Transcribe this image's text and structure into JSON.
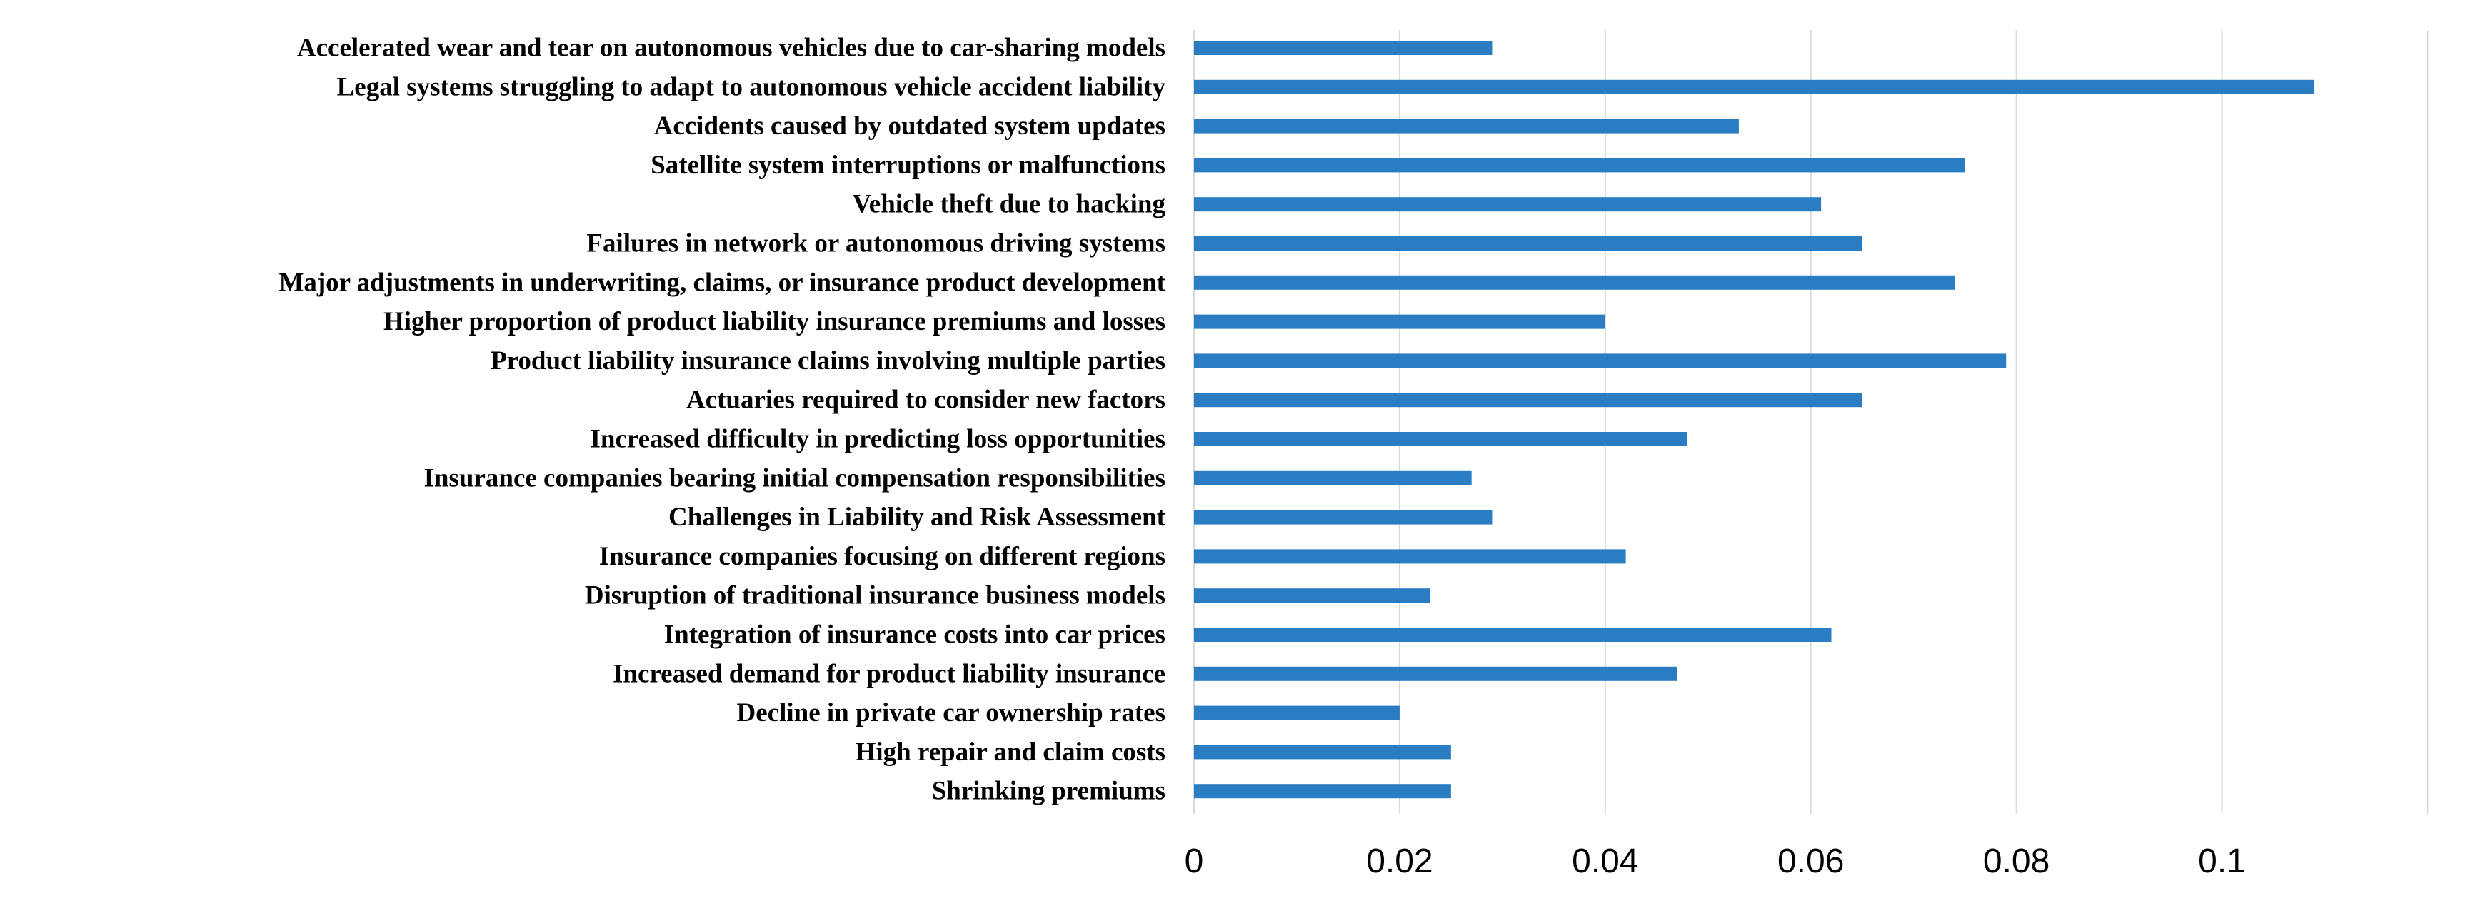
{
  "chart_data": {
    "type": "bar",
    "orientation": "horizontal",
    "title": "",
    "xlabel": "",
    "ylabel": "",
    "xlim": [
      0,
      0.12
    ],
    "x_ticks": [
      {
        "value": 0,
        "label": "0"
      },
      {
        "value": 0.02,
        "label": "0.02"
      },
      {
        "value": 0.04,
        "label": "0.04"
      },
      {
        "value": 0.06,
        "label": "0.06"
      },
      {
        "value": 0.08,
        "label": "0.08"
      },
      {
        "value": 0.1,
        "label": "0.1"
      }
    ],
    "grid": true,
    "legend": "none",
    "bar_color": "#2a7dc3",
    "grid_color": "#d9d9d9",
    "categories": [
      "Accelerated wear and tear on autonomous vehicles due to car-sharing models",
      "Legal systems struggling to adapt to autonomous vehicle accident liability",
      "Accidents caused by outdated system updates",
      "Satellite system interruptions or malfunctions",
      "Vehicle theft due to hacking",
      "Failures in network or autonomous driving systems",
      "Major adjustments in underwriting, claims, or insurance product development",
      "Higher proportion of product liability insurance premiums and losses",
      "Product liability insurance claims involving multiple parties",
      "Actuaries required to consider new factors",
      "Increased difficulty in predicting loss opportunities",
      "Insurance companies bearing initial compensation responsibilities",
      "Challenges in Liability and Risk Assessment",
      "Insurance companies focusing on different regions",
      "Disruption of traditional insurance business models",
      "Integration of insurance costs into car prices",
      "Increased demand for product liability insurance",
      "Decline in private car ownership rates",
      "High repair and claim costs",
      "Shrinking premiums"
    ],
    "values": [
      0.029,
      0.109,
      0.053,
      0.075,
      0.061,
      0.065,
      0.074,
      0.04,
      0.079,
      0.065,
      0.048,
      0.027,
      0.029,
      0.042,
      0.023,
      0.062,
      0.047,
      0.02,
      0.025,
      0.025
    ]
  }
}
